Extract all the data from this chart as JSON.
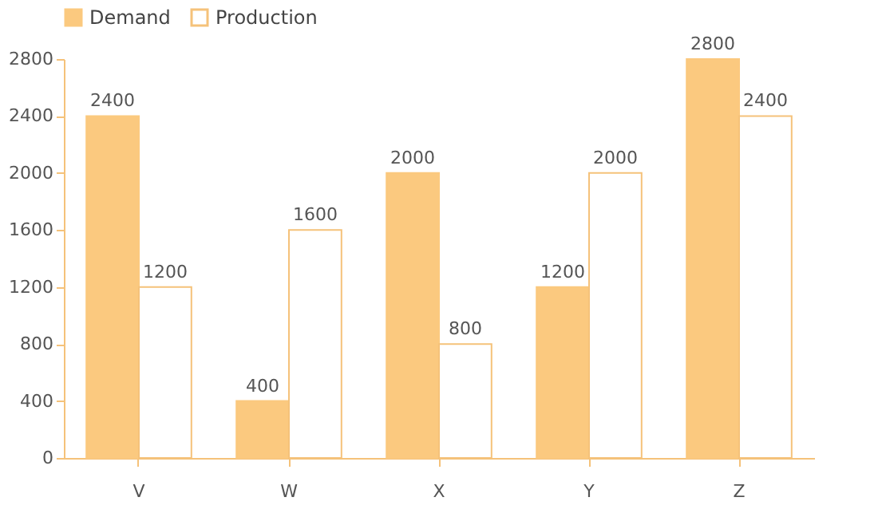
{
  "chart_data": {
    "type": "bar",
    "categories": [
      "V",
      "W",
      "X",
      "Y",
      "Z"
    ],
    "series": [
      {
        "name": "Demand",
        "color": "#fbc97f",
        "values": [
          2400,
          400,
          2000,
          1200,
          2800
        ]
      },
      {
        "name": "Production",
        "color": "#f5c27a",
        "values": [
          1200,
          1600,
          800,
          2000,
          2400
        ]
      }
    ],
    "ylim": [
      0,
      2800
    ],
    "yticks": [
      0,
      400,
      800,
      1200,
      1600,
      2000,
      2400,
      2800
    ],
    "grid": false,
    "legend": "top",
    "data_labels": true
  }
}
